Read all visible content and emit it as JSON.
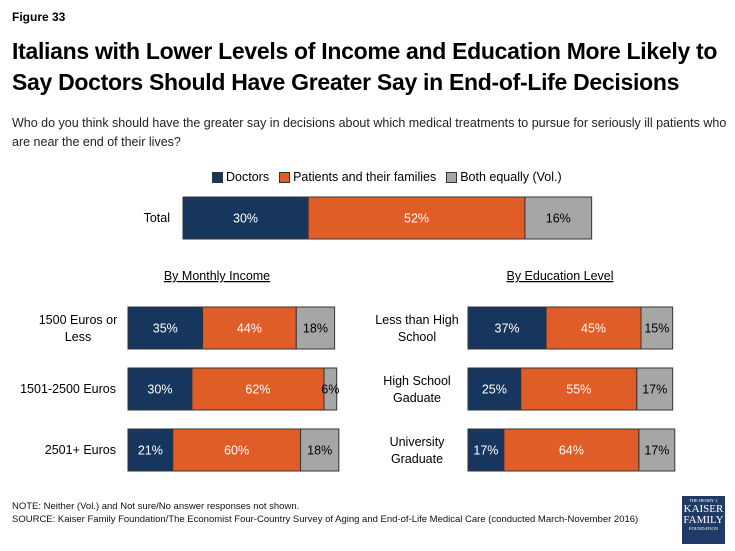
{
  "figure_label": "Figure 33",
  "title": "Italians with Lower Levels of Income and Education More Likely to Say Doctors Should Have Greater Say in End-of-Life Decisions",
  "subtitle": "Who do you think should have the greater say in decisions about which medical treatments to pursue for seriously ill patients who are near the end of their lives?",
  "note": "NOTE: Neither (Vol.) and Not sure/No answer responses not shown.",
  "source": "SOURCE: Kaiser Family Foundation/The Economist Four-Country Survey of Aging and End-of-Life Medical Care  (conducted March-November 2016)",
  "logo": {
    "line1": "THE HENRY J.",
    "line2": "KAISER",
    "line3": "FAMILY",
    "line4": "FOUNDATION"
  },
  "chart_data": {
    "type": "bar",
    "orientation": "horizontal-stacked",
    "series_names": [
      "Doctors",
      "Patients and their families",
      "Both equally (Vol.)"
    ],
    "colors": [
      "#17365d",
      "#e05d28",
      "#a6a6a6"
    ],
    "label_colors": [
      "#ffffff",
      "#ffffff",
      "#000000"
    ],
    "legend_position": "top",
    "panels": [
      {
        "id": "total",
        "heading": "",
        "categories": [
          "Total"
        ],
        "values": [
          [
            30,
            52,
            16
          ]
        ]
      },
      {
        "id": "income",
        "heading": "By Monthly Income",
        "categories": [
          "1500 Euros or Less",
          "1501-2500 Euros",
          "2501+ Euros"
        ],
        "values": [
          [
            35,
            44,
            18
          ],
          [
            30,
            62,
            6
          ],
          [
            21,
            60,
            18
          ]
        ]
      },
      {
        "id": "education",
        "heading": "By Education Level",
        "categories": [
          "Less than High School",
          "High School Gaduate",
          "University Graduate"
        ],
        "values": [
          [
            37,
            45,
            15
          ],
          [
            25,
            55,
            17
          ],
          [
            17,
            64,
            17
          ]
        ]
      }
    ]
  }
}
